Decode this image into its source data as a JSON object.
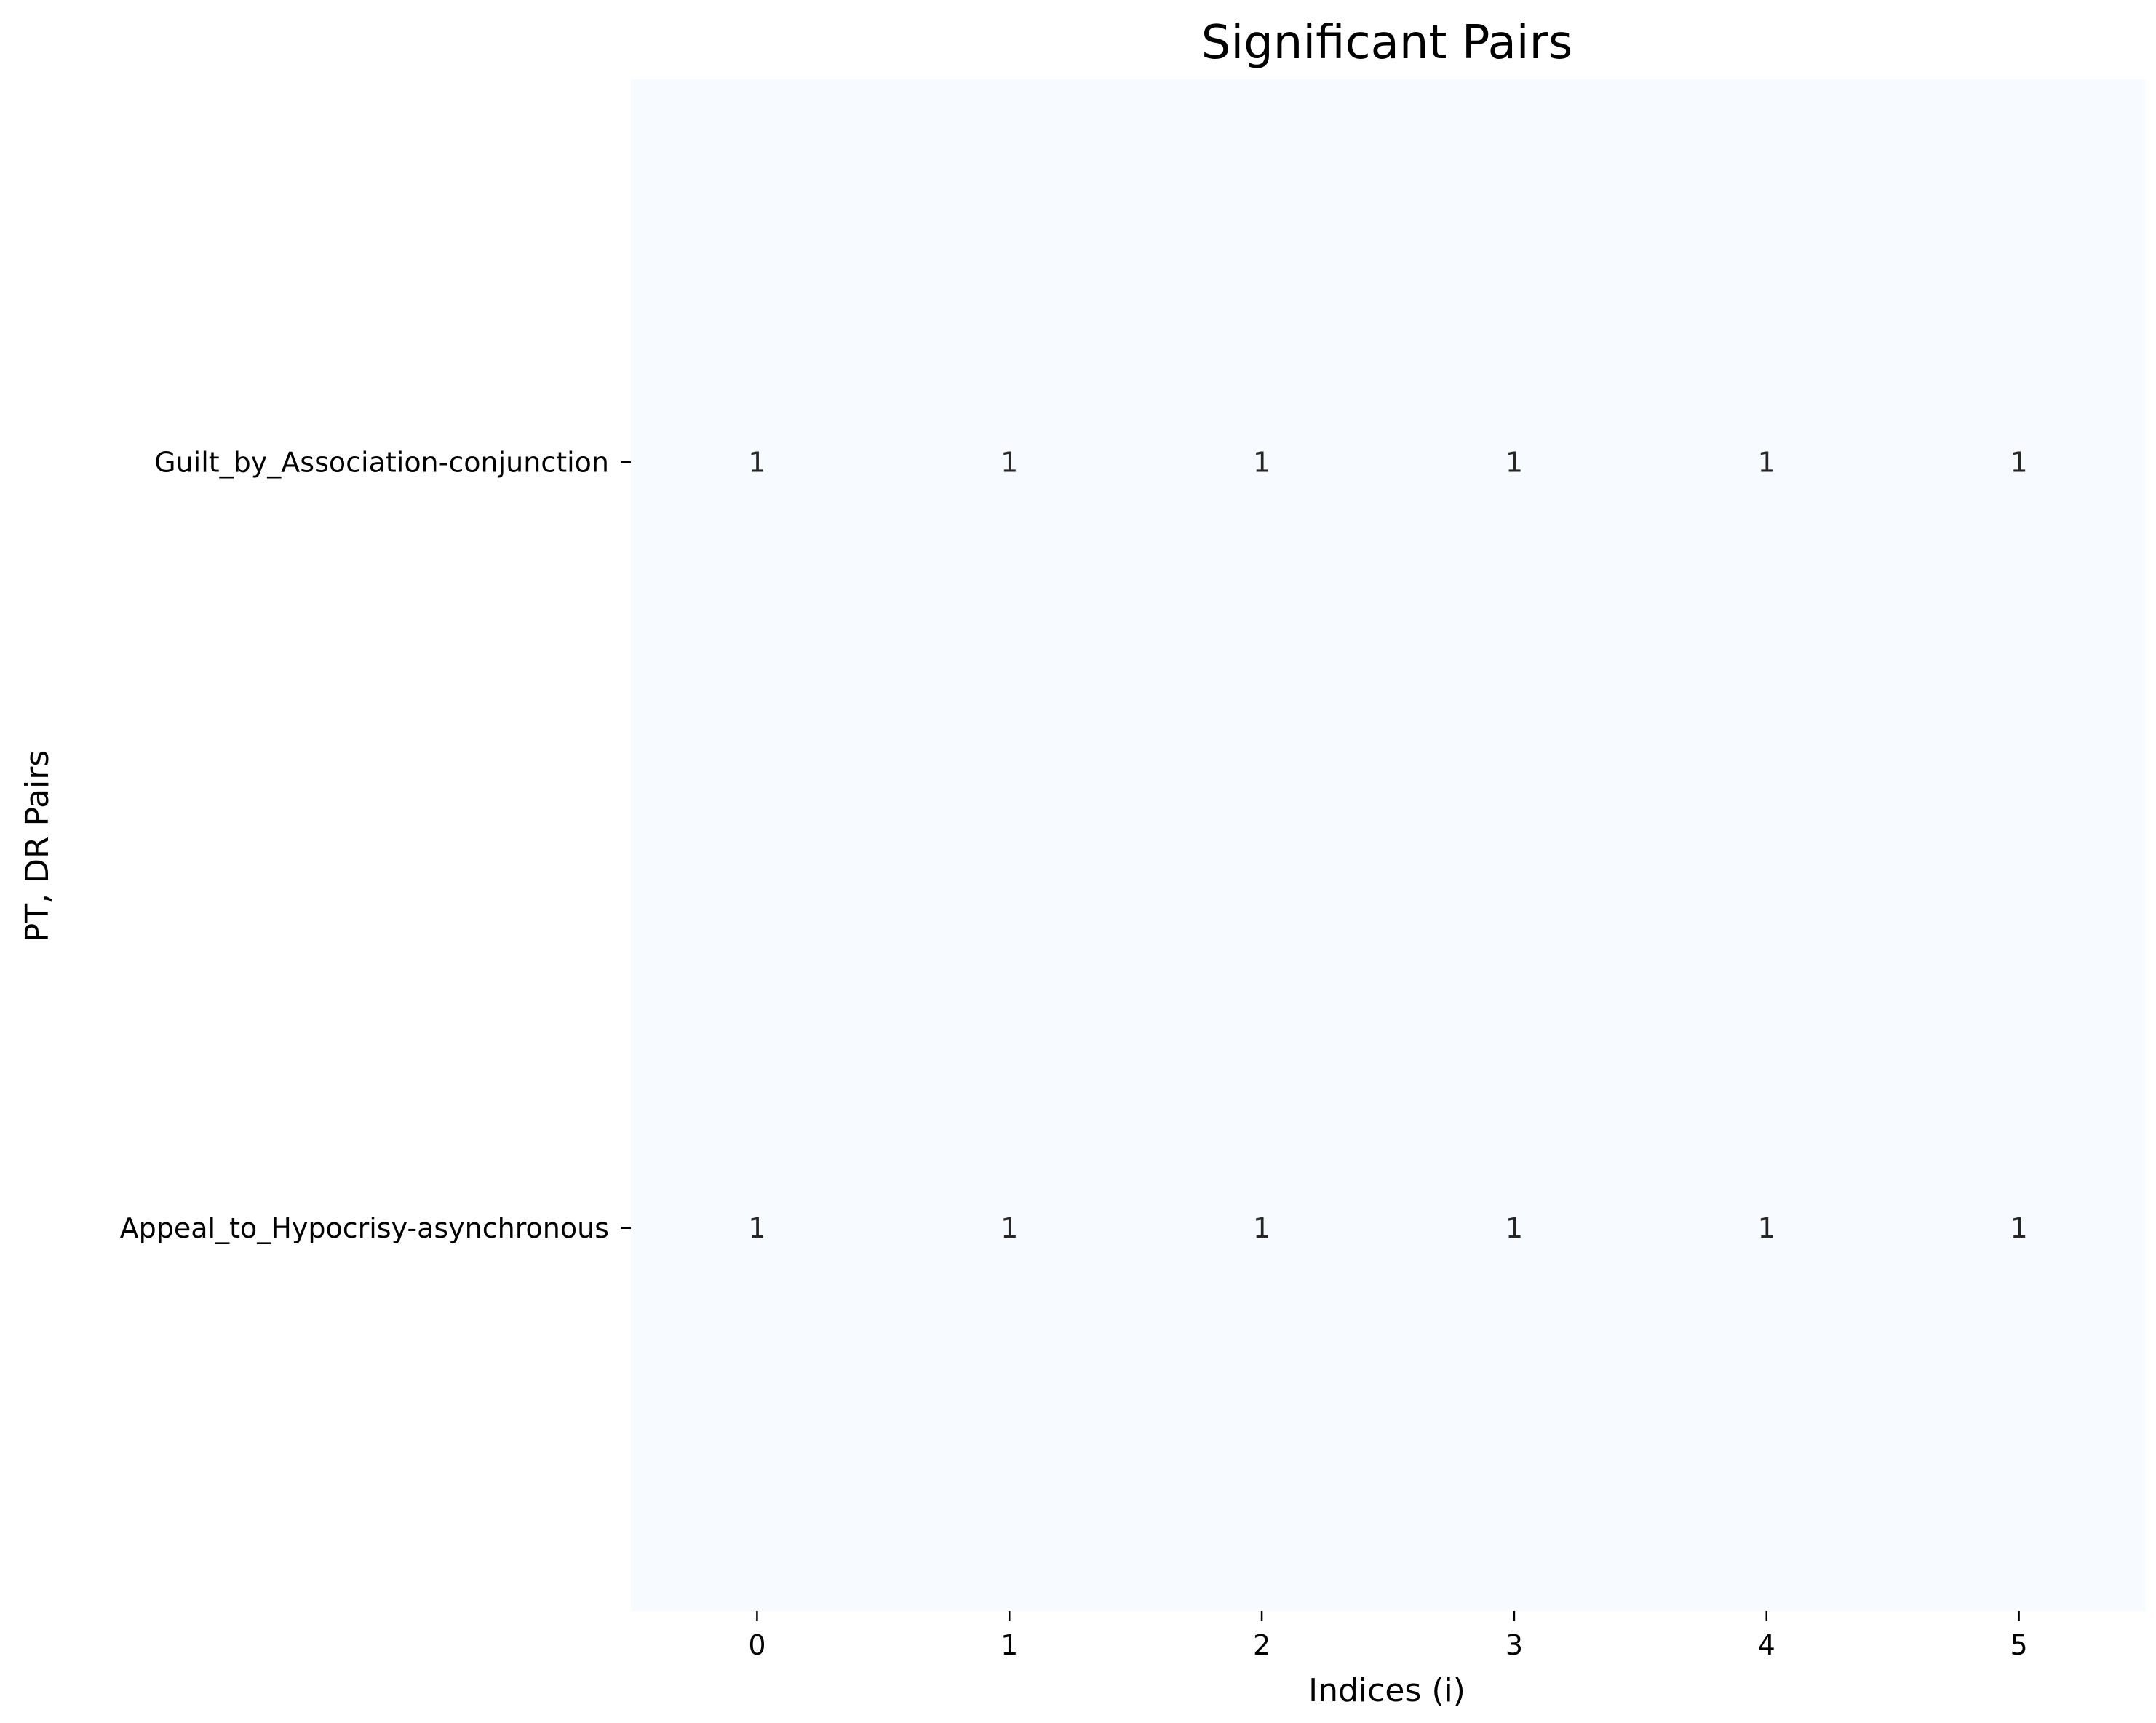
{
  "chart_data": {
    "type": "heatmap",
    "title": "Significant Pairs",
    "xlabel": "Indices (i)",
    "ylabel": "PT, DR Pairs",
    "x_categories": [
      "0",
      "1",
      "2",
      "3",
      "4",
      "5"
    ],
    "y_categories": [
      "Guilt_by_Association-conjunction",
      "Appeal_to_Hypocrisy-asynchronous"
    ],
    "values": [
      [
        1,
        1,
        1,
        1,
        1,
        1
      ],
      [
        1,
        1,
        1,
        1,
        1,
        1
      ]
    ],
    "annotations": true,
    "colorbar": false,
    "colormap": "Blues",
    "cell_color": "#f7fbff"
  }
}
